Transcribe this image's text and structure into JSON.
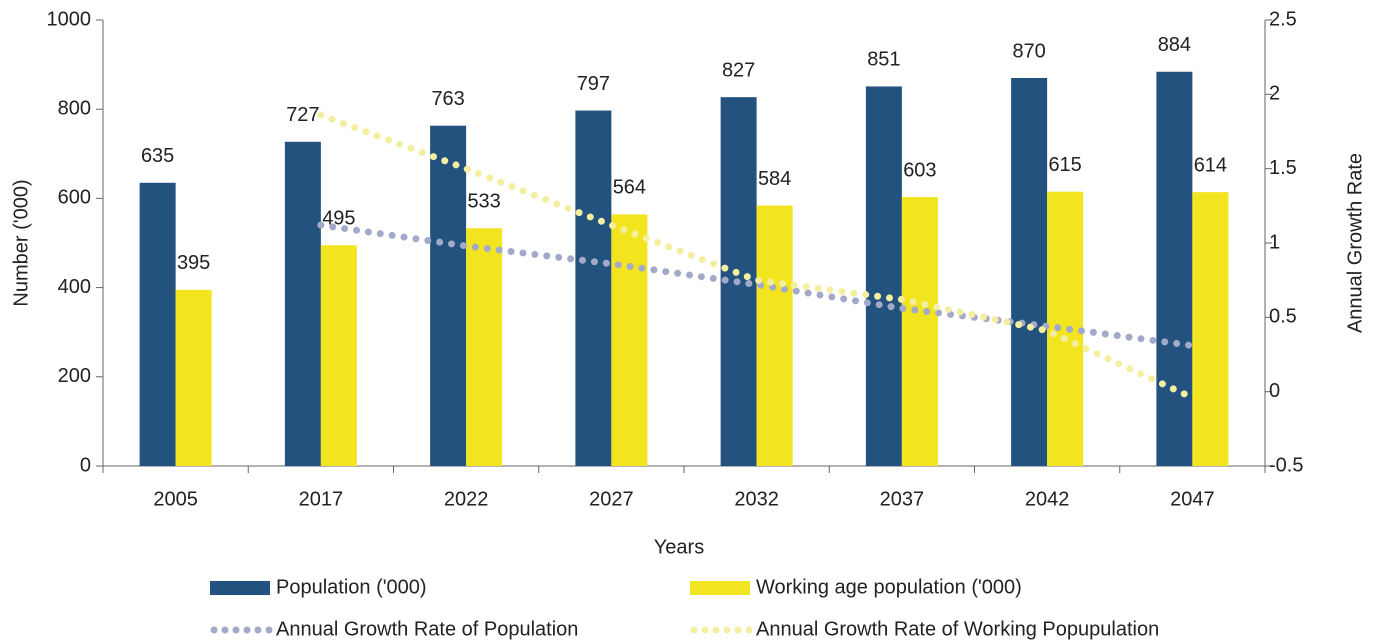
{
  "chart_data": {
    "type": "bar",
    "categories": [
      "2005",
      "2017",
      "2022",
      "2027",
      "2032",
      "2037",
      "2042",
      "2047"
    ],
    "series": [
      {
        "name": "Population ('000)",
        "color": "#23527f",
        "values": [
          635,
          727,
          763,
          797,
          827,
          851,
          870,
          884
        ]
      },
      {
        "name": "Working age population ('000)",
        "color": "#f2e51f",
        "values": [
          395,
          495,
          533,
          564,
          584,
          603,
          615,
          614
        ]
      },
      {
        "name": "Annual Growth Rate of Population",
        "color": "#a3a9c8",
        "type": "line",
        "axis": "y2",
        "values": [
          null,
          1.12,
          0.98,
          0.86,
          0.72,
          0.56,
          0.44,
          0.31
        ]
      },
      {
        "name": "Annual Growth Rate of Working Popupulation",
        "color": "#f3eea0",
        "type": "line",
        "axis": "y2",
        "values": [
          null,
          1.86,
          1.5,
          1.12,
          0.75,
          0.62,
          0.41,
          -0.04
        ]
      }
    ],
    "xlabel": "Years",
    "ylabel": "Number ('000)",
    "y2label": "Annual Growth Rate",
    "ylim": [
      0,
      1000
    ],
    "yticks": [
      0,
      200,
      400,
      600,
      800,
      1000
    ],
    "y2lim": [
      -0.5,
      2.5
    ],
    "y2ticks": [
      -0.5,
      0,
      0.5,
      1,
      1.5,
      2,
      2.5
    ],
    "legend": "bottom"
  }
}
